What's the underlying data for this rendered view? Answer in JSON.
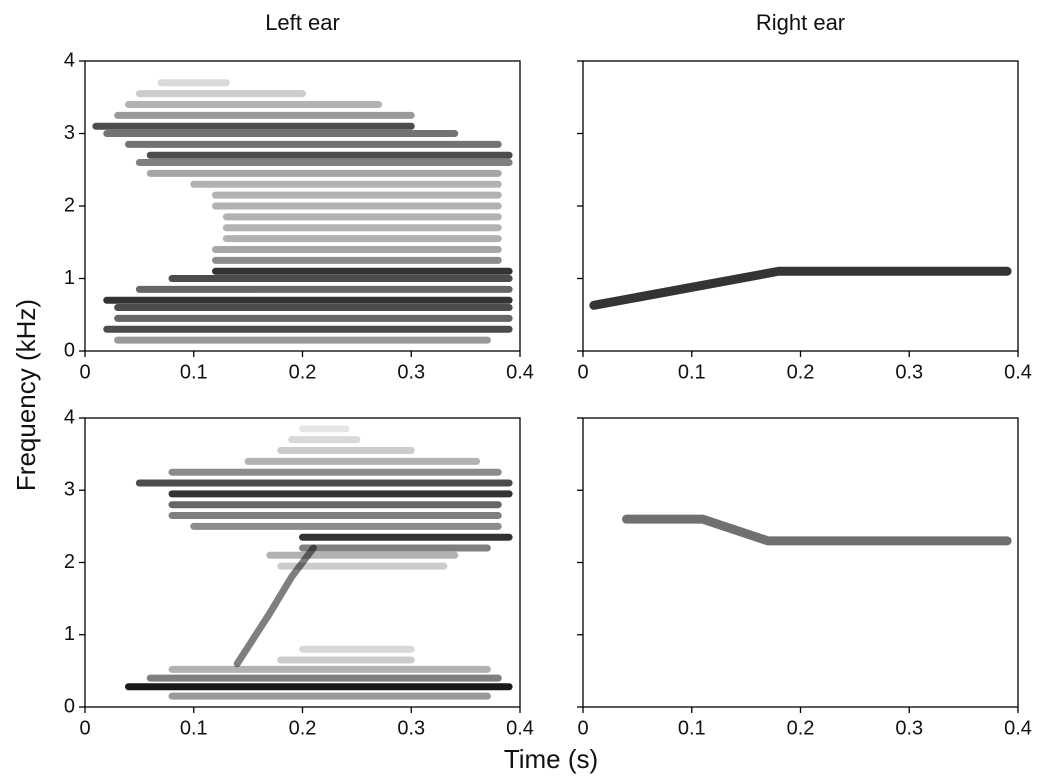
{
  "chart_data": [
    {
      "type": "spectrogram",
      "title": "Left ear",
      "ylabel": "Frequency (kHz)",
      "color": "#000000",
      "xlim": [
        0,
        0.4
      ],
      "ylim": [
        0,
        4
      ],
      "xticks": [
        0,
        0.1,
        0.2,
        0.3,
        0.4
      ],
      "yticks": [
        0,
        1,
        2,
        3,
        4
      ],
      "yticklabels": true,
      "series": [
        {
          "x": [
            0.03,
            0.37
          ],
          "values": [
            0.15,
            0.15
          ],
          "opacity": 0.4
        },
        {
          "x": [
            0.02,
            0.39
          ],
          "values": [
            0.3,
            0.3
          ],
          "opacity": 0.7
        },
        {
          "x": [
            0.03,
            0.39
          ],
          "values": [
            0.45,
            0.45
          ],
          "opacity": 0.6
        },
        {
          "x": [
            0.03,
            0.39
          ],
          "values": [
            0.6,
            0.6
          ],
          "opacity": 0.7
        },
        {
          "x": [
            0.02,
            0.39
          ],
          "values": [
            0.7,
            0.7
          ],
          "opacity": 0.8
        },
        {
          "x": [
            0.05,
            0.39
          ],
          "values": [
            0.85,
            0.85
          ],
          "opacity": 0.6
        },
        {
          "x": [
            0.08,
            0.39
          ],
          "values": [
            1.0,
            1.0
          ],
          "opacity": 0.7
        },
        {
          "x": [
            0.12,
            0.39
          ],
          "values": [
            1.1,
            1.1
          ],
          "opacity": 0.8
        },
        {
          "x": [
            0.12,
            0.38
          ],
          "values": [
            1.25,
            1.25
          ],
          "opacity": 0.45
        },
        {
          "x": [
            0.12,
            0.38
          ],
          "values": [
            1.4,
            1.4
          ],
          "opacity": 0.35
        },
        {
          "x": [
            0.13,
            0.38
          ],
          "values": [
            1.55,
            1.55
          ],
          "opacity": 0.3
        },
        {
          "x": [
            0.13,
            0.38
          ],
          "values": [
            1.7,
            1.7
          ],
          "opacity": 0.3
        },
        {
          "x": [
            0.13,
            0.38
          ],
          "values": [
            1.85,
            1.85
          ],
          "opacity": 0.3
        },
        {
          "x": [
            0.12,
            0.38
          ],
          "values": [
            2.0,
            2.0
          ],
          "opacity": 0.3
        },
        {
          "x": [
            0.12,
            0.38
          ],
          "values": [
            2.15,
            2.15
          ],
          "opacity": 0.3
        },
        {
          "x": [
            0.1,
            0.38
          ],
          "values": [
            2.3,
            2.3
          ],
          "opacity": 0.3
        },
        {
          "x": [
            0.06,
            0.38
          ],
          "values": [
            2.45,
            2.45
          ],
          "opacity": 0.35
        },
        {
          "x": [
            0.05,
            0.39
          ],
          "values": [
            2.6,
            2.6
          ],
          "opacity": 0.5
        },
        {
          "x": [
            0.06,
            0.39
          ],
          "values": [
            2.7,
            2.7
          ],
          "opacity": 0.7
        },
        {
          "x": [
            0.04,
            0.38
          ],
          "values": [
            2.85,
            2.85
          ],
          "opacity": 0.55
        },
        {
          "x": [
            0.02,
            0.34
          ],
          "values": [
            3.0,
            3.0
          ],
          "opacity": 0.55
        },
        {
          "x": [
            0.01,
            0.3
          ],
          "values": [
            3.1,
            3.1
          ],
          "opacity": 0.7
        },
        {
          "x": [
            0.03,
            0.3
          ],
          "values": [
            3.25,
            3.25
          ],
          "opacity": 0.4
        },
        {
          "x": [
            0.04,
            0.27
          ],
          "values": [
            3.4,
            3.4
          ],
          "opacity": 0.3
        },
        {
          "x": [
            0.05,
            0.2
          ],
          "values": [
            3.55,
            3.55
          ],
          "opacity": 0.2
        },
        {
          "x": [
            0.07,
            0.13
          ],
          "values": [
            3.7,
            3.7
          ],
          "opacity": 0.15
        }
      ]
    },
    {
      "type": "line",
      "title": "Right ear",
      "color": "#111111",
      "xlim": [
        0,
        0.4
      ],
      "ylim": [
        0,
        4
      ],
      "xticks": [
        0,
        0.1,
        0.2,
        0.3,
        0.4
      ],
      "yticks": [
        0,
        1,
        2,
        3,
        4
      ],
      "yticklabels": false,
      "series": [
        {
          "x": [
            0.01,
            0.18,
            0.39
          ],
          "values": [
            0.63,
            1.1,
            1.1
          ],
          "opacity": 0.85
        }
      ]
    },
    {
      "type": "spectrogram",
      "xlabel": "Time (s)",
      "color": "#000000",
      "xlim": [
        0,
        0.4
      ],
      "ylim": [
        0,
        4
      ],
      "xticks": [
        0,
        0.1,
        0.2,
        0.3,
        0.4
      ],
      "yticks": [
        0,
        1,
        2,
        3,
        4
      ],
      "yticklabels": true,
      "series": [
        {
          "x": [
            0.08,
            0.37
          ],
          "values": [
            0.15,
            0.15
          ],
          "opacity": 0.4
        },
        {
          "x": [
            0.04,
            0.39
          ],
          "values": [
            0.28,
            0.28
          ],
          "opacity": 0.9
        },
        {
          "x": [
            0.06,
            0.38
          ],
          "values": [
            0.4,
            0.4
          ],
          "opacity": 0.5
        },
        {
          "x": [
            0.08,
            0.37
          ],
          "values": [
            0.52,
            0.52
          ],
          "opacity": 0.3
        },
        {
          "x": [
            0.18,
            0.3
          ],
          "values": [
            0.65,
            0.65
          ],
          "opacity": 0.2
        },
        {
          "x": [
            0.2,
            0.3
          ],
          "values": [
            0.8,
            0.8
          ],
          "opacity": 0.15
        },
        {
          "x": [
            0.14,
            0.17,
            0.19,
            0.21
          ],
          "values": [
            0.6,
            1.3,
            1.8,
            2.2
          ],
          "opacity": 0.5
        },
        {
          "x": [
            0.18,
            0.33
          ],
          "values": [
            1.95,
            1.95
          ],
          "opacity": 0.2
        },
        {
          "x": [
            0.17,
            0.34
          ],
          "values": [
            2.1,
            2.1
          ],
          "opacity": 0.3
        },
        {
          "x": [
            0.2,
            0.37
          ],
          "values": [
            2.2,
            2.2
          ],
          "opacity": 0.5
        },
        {
          "x": [
            0.2,
            0.39
          ],
          "values": [
            2.35,
            2.35
          ],
          "opacity": 0.8
        },
        {
          "x": [
            0.1,
            0.38
          ],
          "values": [
            2.5,
            2.5
          ],
          "opacity": 0.45
        },
        {
          "x": [
            0.08,
            0.38
          ],
          "values": [
            2.65,
            2.65
          ],
          "opacity": 0.5
        },
        {
          "x": [
            0.08,
            0.38
          ],
          "values": [
            2.8,
            2.8
          ],
          "opacity": 0.6
        },
        {
          "x": [
            0.08,
            0.39
          ],
          "values": [
            2.95,
            2.95
          ],
          "opacity": 0.8
        },
        {
          "x": [
            0.05,
            0.39
          ],
          "values": [
            3.1,
            3.1
          ],
          "opacity": 0.7
        },
        {
          "x": [
            0.08,
            0.38
          ],
          "values": [
            3.25,
            3.25
          ],
          "opacity": 0.45
        },
        {
          "x": [
            0.15,
            0.36
          ],
          "values": [
            3.4,
            3.4
          ],
          "opacity": 0.3
        },
        {
          "x": [
            0.18,
            0.3
          ],
          "values": [
            3.55,
            3.55
          ],
          "opacity": 0.2
        },
        {
          "x": [
            0.19,
            0.25
          ],
          "values": [
            3.7,
            3.7
          ],
          "opacity": 0.15
        },
        {
          "x": [
            0.2,
            0.24
          ],
          "values": [
            3.85,
            3.85
          ],
          "opacity": 0.1
        }
      ]
    },
    {
      "type": "line",
      "color": "#111111",
      "xlim": [
        0,
        0.4
      ],
      "ylim": [
        0,
        4
      ],
      "xticks": [
        0,
        0.1,
        0.2,
        0.3,
        0.4
      ],
      "yticks": [
        0,
        1,
        2,
        3,
        4
      ],
      "yticklabels": false,
      "series": [
        {
          "x": [
            0.04,
            0.11,
            0.17,
            0.39
          ],
          "values": [
            2.6,
            2.6,
            2.3,
            2.3
          ],
          "opacity": 0.6
        }
      ]
    }
  ]
}
